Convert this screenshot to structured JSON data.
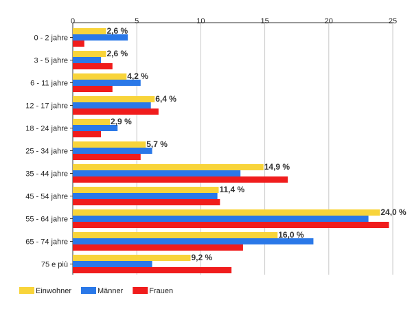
{
  "chart_data": {
    "type": "bar",
    "orientation": "horizontal",
    "categories": [
      "0 - 2 jahre",
      "3 - 5 jahre",
      "6 - 11 jahre",
      "12 - 17 jahre",
      "18 - 24 jahre",
      "25 - 34 jahre",
      "35 - 44 jahre",
      "45 - 54 jahre",
      "55 - 64 jahre",
      "65 - 74 jahre",
      "75 e più"
    ],
    "series": [
      {
        "name": "Einwohner",
        "color": "#f8d43a",
        "values": [
          2.6,
          2.6,
          4.2,
          6.4,
          2.9,
          5.7,
          14.9,
          11.4,
          24.0,
          16.0,
          9.2
        ]
      },
      {
        "name": "Männer",
        "color": "#2a78e8",
        "values": [
          4.3,
          2.2,
          5.3,
          6.1,
          3.5,
          6.2,
          13.1,
          11.3,
          23.1,
          18.8,
          6.2
        ]
      },
      {
        "name": "Frauen",
        "color": "#f01c1c",
        "values": [
          0.9,
          3.1,
          3.1,
          6.7,
          2.2,
          5.3,
          16.8,
          11.5,
          24.7,
          13.3,
          12.4
        ]
      }
    ],
    "data_labels": [
      "2,6 %",
      "2,6 %",
      "4,2 %",
      "6,4 %",
      "2,9 %",
      "5,7 %",
      "14,9 %",
      "11,4 %",
      "24,0 %",
      "16,0 %",
      "9,2 %"
    ],
    "xlim": [
      0,
      25
    ],
    "xticks": [
      0,
      5,
      10,
      15,
      20,
      25
    ],
    "grid": true,
    "legend_position": "bottom-left",
    "title": "",
    "xlabel": "",
    "ylabel": ""
  }
}
